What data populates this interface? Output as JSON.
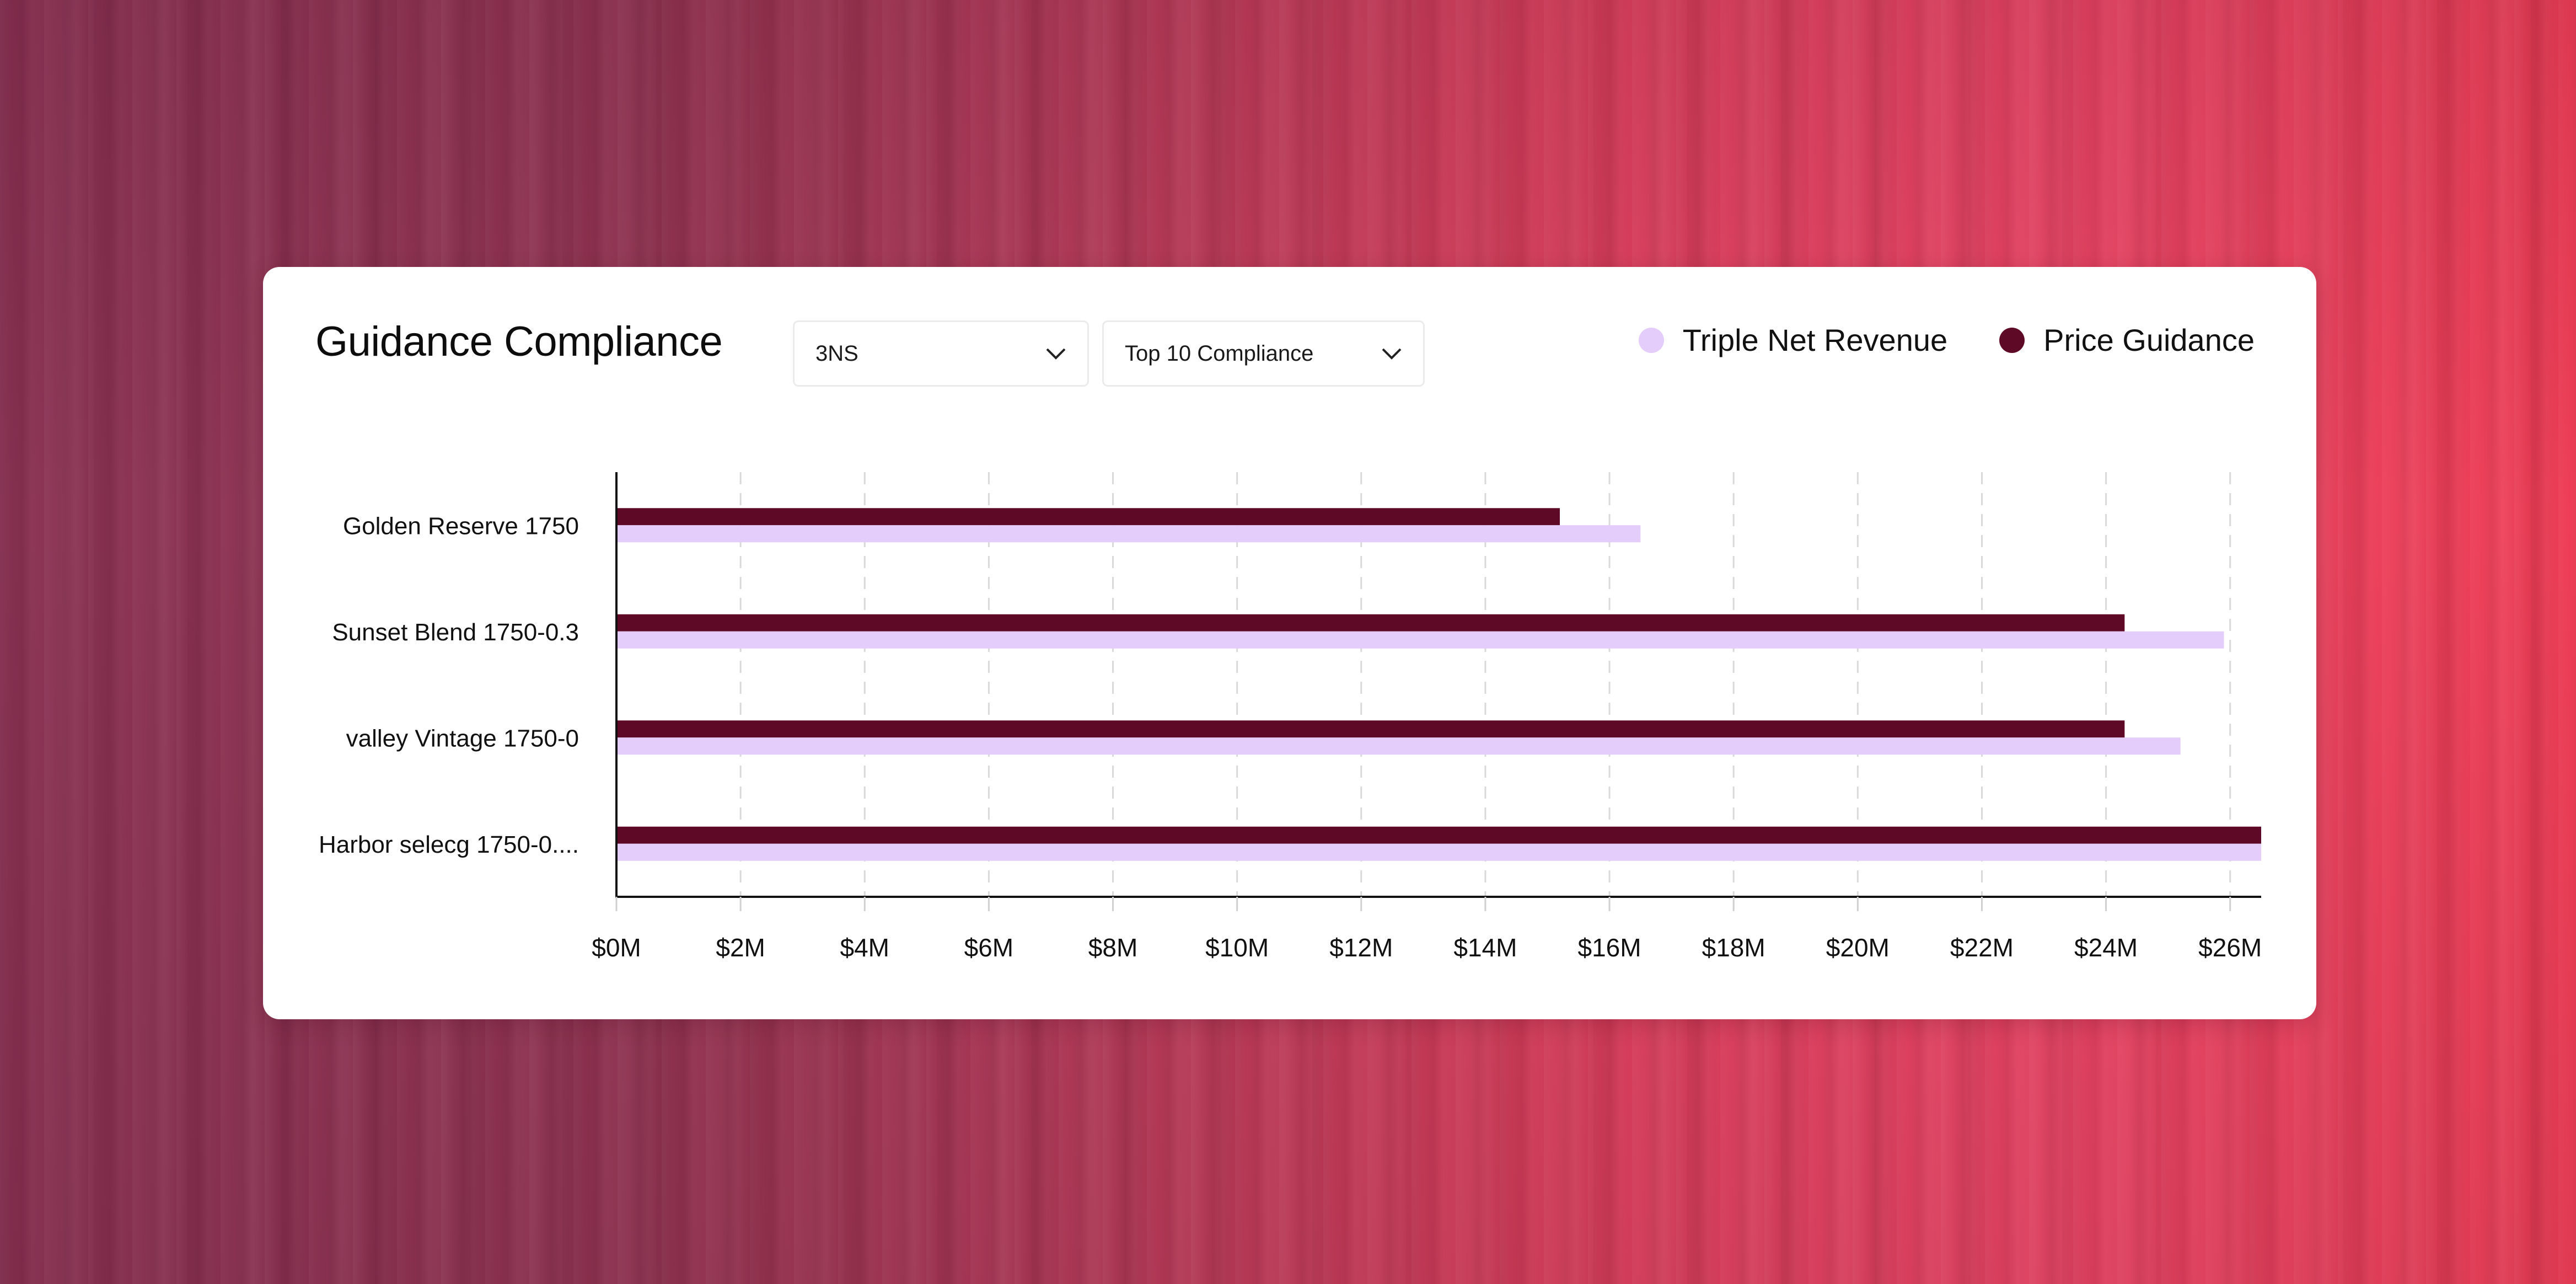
{
  "card": {
    "title": "Guidance Compliance"
  },
  "filters": {
    "select_1": {
      "value": "3NS",
      "icon": "chevron-down-icon"
    },
    "select_2": {
      "value": "Top 10 Compliance",
      "icon": "chevron-down-icon"
    }
  },
  "legend": [
    {
      "label": "Triple Net Revenue",
      "color": "#e4ccfb"
    },
    {
      "label": "Price Guidance",
      "color": "#5e0a26"
    }
  ],
  "chart_data": {
    "type": "bar",
    "orientation": "horizontal",
    "title": "Guidance Compliance",
    "categories": [
      "Golden Reserve 1750",
      "Sunset Blend 1750-0.3",
      "valley Vintage 1750-0",
      "Harbor selecg 1750-0...."
    ],
    "series": [
      {
        "name": "Price Guidance",
        "color": "#5e0a26",
        "values": [
          15.2,
          24.3,
          24.3,
          26.5
        ]
      },
      {
        "name": "Triple Net Revenue",
        "color": "#e4ccfb",
        "values": [
          16.5,
          25.9,
          25.2,
          26.5
        ]
      }
    ],
    "x_ticks": [
      0,
      2,
      4,
      6,
      8,
      10,
      12,
      14,
      16,
      18,
      20,
      22,
      24,
      26
    ],
    "x_tick_labels": [
      "$0M",
      "$2M",
      "$4M",
      "$6M",
      "$8M",
      "$10M",
      "$12M",
      "$14M",
      "$16M",
      "$18M",
      "$20M",
      "$22M",
      "$24M",
      "$26M"
    ],
    "xlim": [
      0,
      26.5
    ],
    "xlabel": "",
    "ylabel": "",
    "grid": "vertical-dashed",
    "legend_position": "top-right"
  }
}
